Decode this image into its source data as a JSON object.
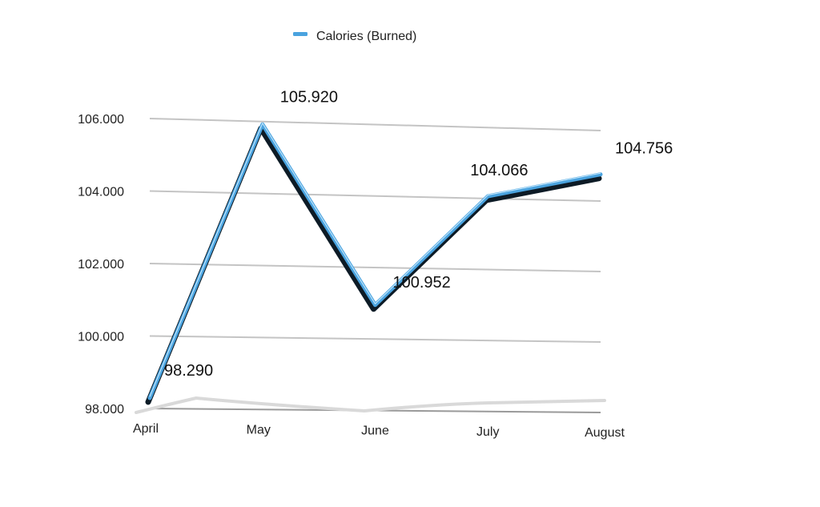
{
  "chart_data": {
    "type": "line",
    "categories": [
      "April",
      "May",
      "June",
      "July",
      "August"
    ],
    "series": [
      {
        "name": "Calories (Burned)",
        "values": [
          98.29,
          105.92,
          100.952,
          104.066,
          104.756
        ],
        "labels": [
          "98.290",
          "105.920",
          "100.952",
          "104.066",
          "104.756"
        ],
        "color": "#4aa3df"
      }
    ],
    "yticks": [
      "98.000",
      "100.000",
      "102.000",
      "104.000",
      "106.000"
    ],
    "ylim": [
      98,
      106
    ],
    "legend": "top-center",
    "grid": true,
    "style": "3d"
  }
}
